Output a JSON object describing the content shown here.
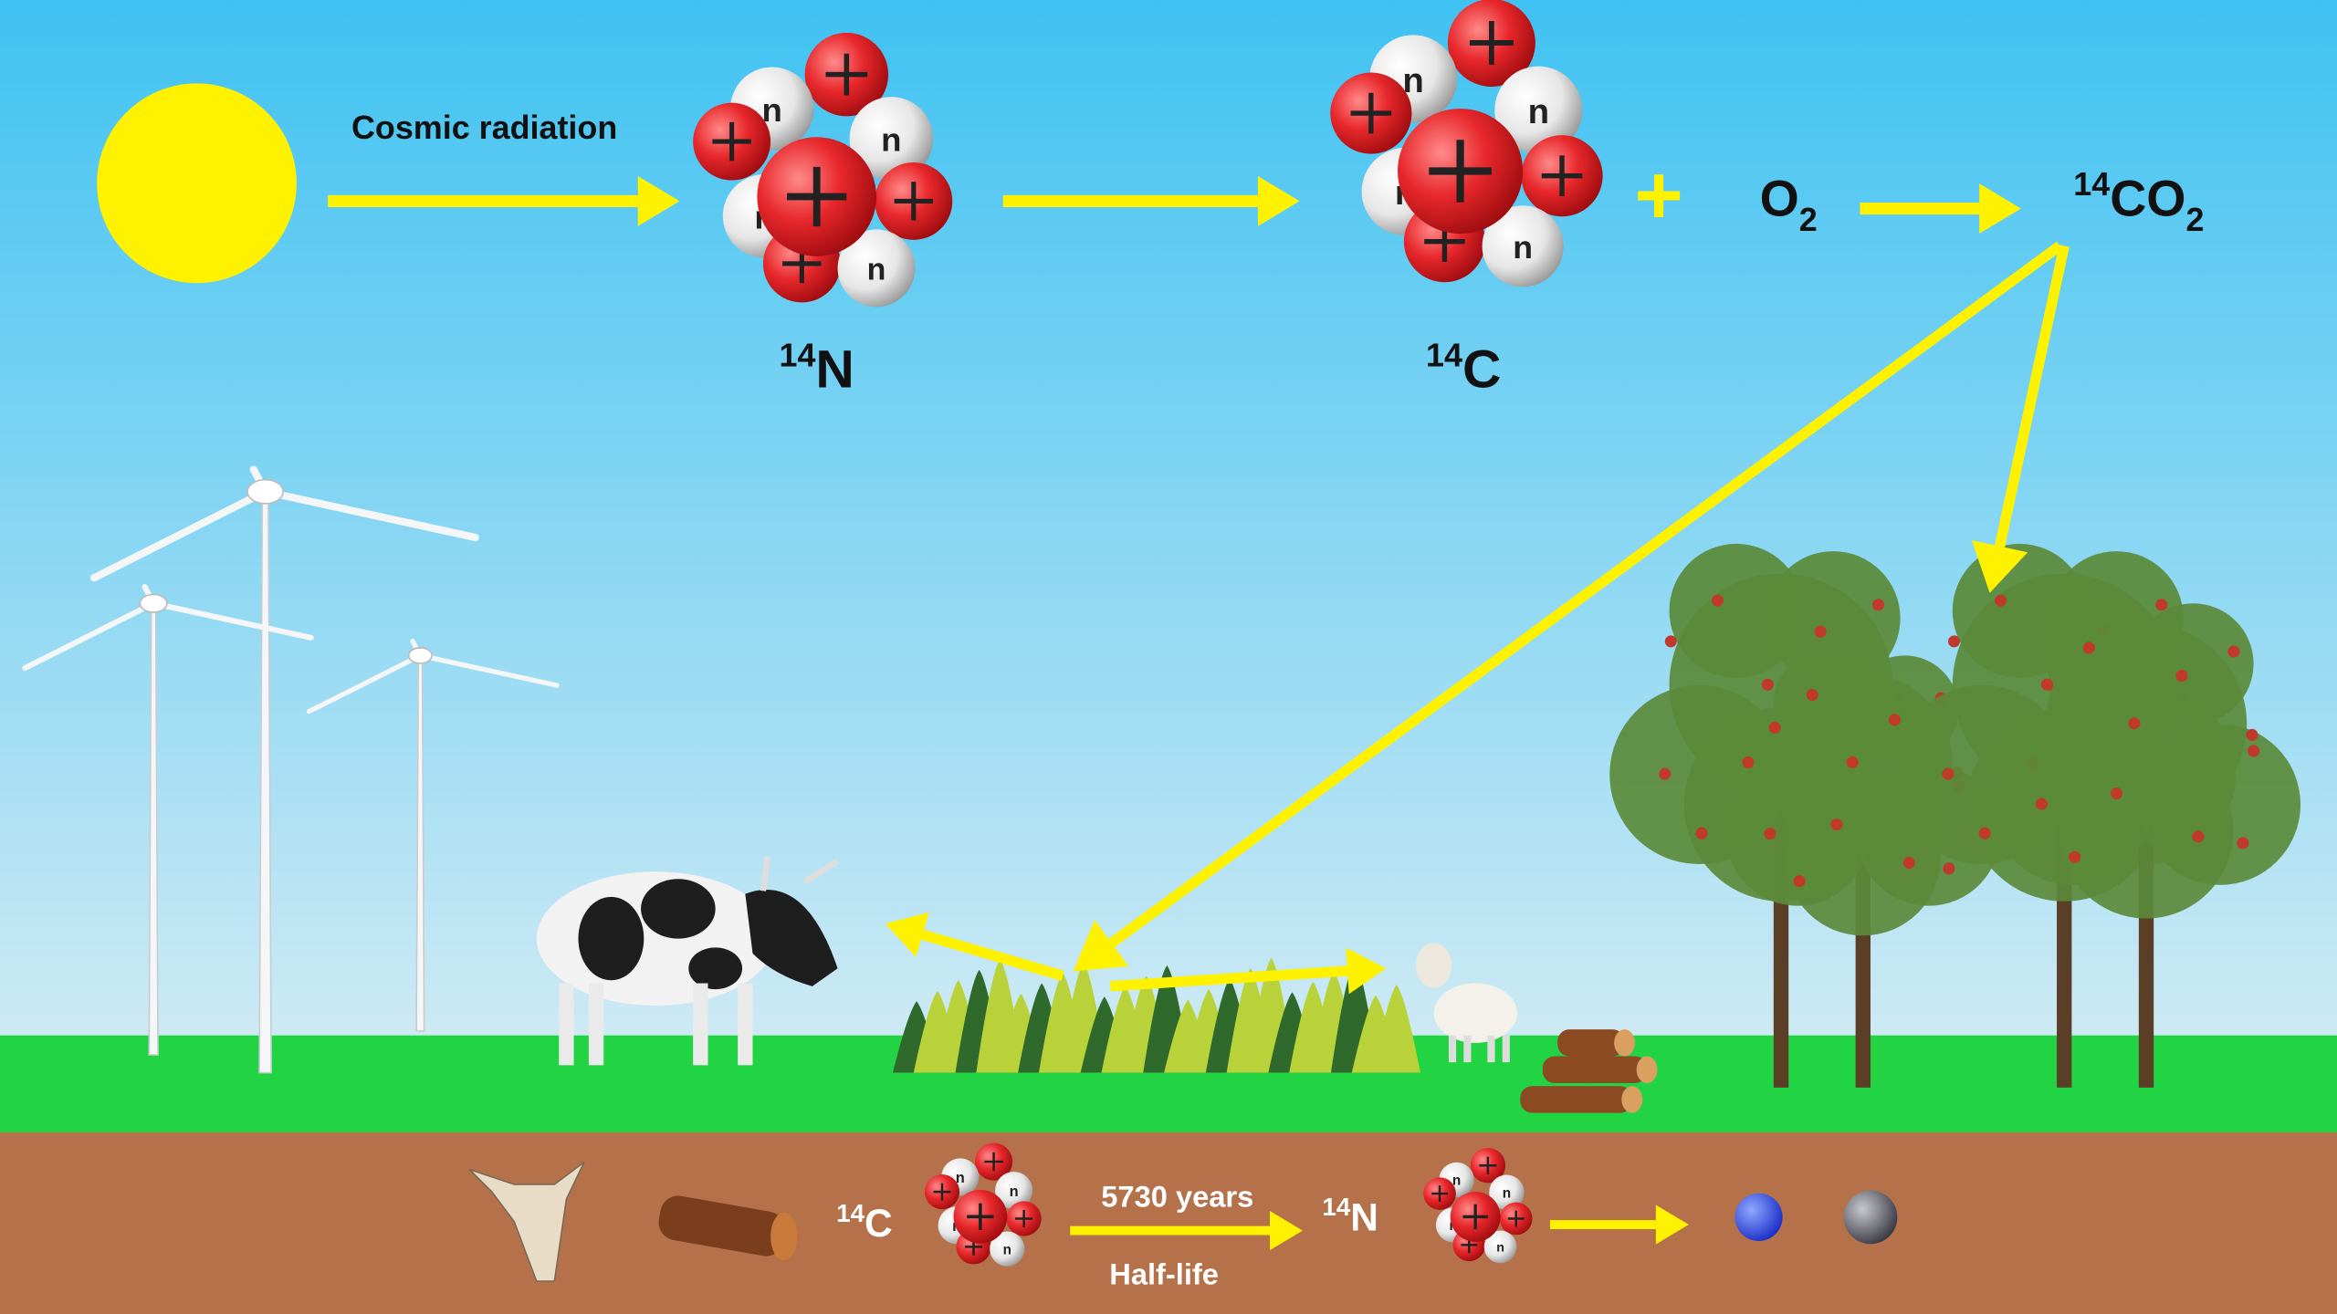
{
  "radiation_label": "Cosmic radiation",
  "nitrogen": {
    "mass": "14",
    "symbol": "N"
  },
  "carbon": {
    "mass": "14",
    "symbol": "C"
  },
  "plus": "+",
  "oxygen": {
    "symbol": "O",
    "subscript": "2"
  },
  "carbon_dioxide": {
    "mass": "14",
    "symbol": "CO",
    "subscript": "2"
  },
  "neutron_label": "n",
  "decay": {
    "from": {
      "mass": "14",
      "symbol": "C"
    },
    "duration": "5730 years",
    "caption": "Half-life",
    "to": {
      "mass": "14",
      "symbol": "N"
    }
  }
}
